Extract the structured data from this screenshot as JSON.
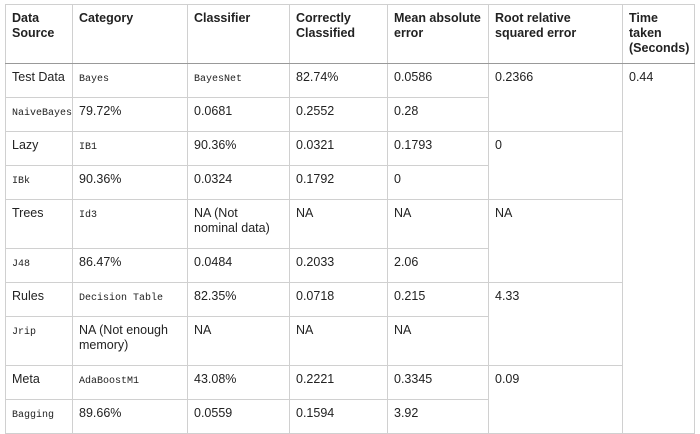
{
  "table": {
    "header": [
      "Data Source",
      "Category",
      "Classifier",
      "Correctly Classified",
      "Mean absolute error",
      "Root relative squared error",
      "Time taken (Seconds)"
    ],
    "rows": [
      [
        "Test Data",
        "Bayes",
        "BayesNet",
        "82.74%",
        "0.0586",
        "0.2366",
        "0.44"
      ],
      [
        "NaiveBayes",
        "79.72%",
        "0.0681",
        "0.2552",
        "0.28"
      ],
      [
        "Lazy",
        "IB1",
        "90.36%",
        "0.0321",
        "0.1793",
        "0"
      ],
      [
        "IBk",
        "90.36%",
        "0.0324",
        "0.1792",
        "0"
      ],
      [
        "Trees",
        "Id3",
        "NA (Not nominal data)",
        "NA",
        "NA",
        "NA"
      ],
      [
        "J48",
        "86.47%",
        "0.0484",
        "0.2033",
        "2.06"
      ],
      [
        "Rules",
        "Decision Table",
        "82.35%",
        "0.0718",
        "0.215",
        "4.33"
      ],
      [
        "Jrip",
        "NA (Not enough memory)",
        "NA",
        "NA",
        "NA"
      ],
      [
        "Meta",
        "AdaBoostM1",
        "43.08%",
        "0.2221",
        "0.3345",
        "0.09"
      ],
      [
        "Bagging",
        "89.66%",
        "0.0559",
        "0.1594",
        "3.92"
      ]
    ]
  }
}
